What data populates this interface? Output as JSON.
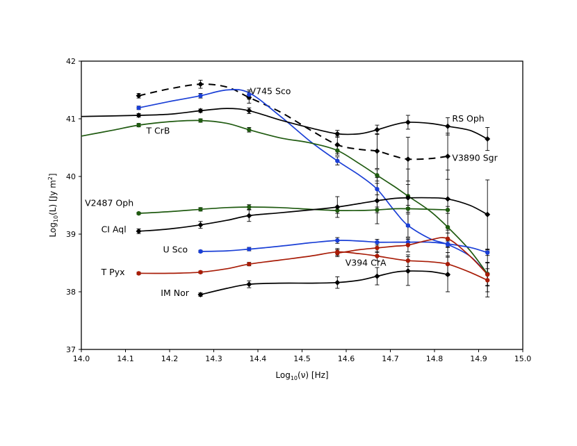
{
  "chart_data": {
    "type": "line",
    "xlabel_main": "Log",
    "xlabel_sub": "10",
    "xlabel_rest": "(ν) [Hz]",
    "ylabel_main": "Log",
    "ylabel_sub": "10",
    "ylabel_mid": "(L) [Jy m",
    "ylabel_sup": "2",
    "ylabel_end": "]",
    "xlim": [
      14.0,
      15.0
    ],
    "ylim": [
      37,
      42
    ],
    "xticks": [
      14.0,
      14.1,
      14.2,
      14.3,
      14.4,
      14.5,
      14.6,
      14.7,
      14.8,
      14.9,
      15.0
    ],
    "xtick_labels": [
      "14.0",
      "14.1",
      "14.2",
      "14.3",
      "14.4",
      "14.5",
      "14.6",
      "14.7",
      "14.8",
      "14.9",
      "15.0"
    ],
    "yticks": [
      37,
      38,
      39,
      40,
      41,
      42
    ],
    "ytick_labels": [
      "37",
      "38",
      "39",
      "40",
      "41",
      "42"
    ],
    "series": [
      {
        "name": "V3890 Sgr",
        "color": "#000000",
        "dashed": true,
        "marker": "diamond",
        "points": [
          [
            14.13,
            41.4
          ],
          [
            14.27,
            41.6
          ],
          [
            14.38,
            41.37
          ],
          [
            14.58,
            40.55
          ],
          [
            14.67,
            40.44
          ],
          [
            14.74,
            40.3
          ],
          [
            14.83,
            40.35
          ]
        ],
        "errors": [
          0.04,
          0.07,
          0.1,
          0.15,
          0.3,
          0.38,
          0.4
        ],
        "curve": [
          [
            14.13,
            41.4
          ],
          [
            14.2,
            41.52
          ],
          [
            14.27,
            41.6
          ],
          [
            14.33,
            41.55
          ],
          [
            14.38,
            41.37
          ],
          [
            14.45,
            41.12
          ],
          [
            14.52,
            40.8
          ],
          [
            14.58,
            40.55
          ],
          [
            14.63,
            40.47
          ],
          [
            14.67,
            40.44
          ],
          [
            14.71,
            40.35
          ],
          [
            14.74,
            40.3
          ],
          [
            14.79,
            40.31
          ],
          [
            14.83,
            40.35
          ]
        ]
      },
      {
        "name": "V745 Sco",
        "color": "#1a3fd6",
        "dashed": false,
        "marker": "circle",
        "points": [
          [
            14.13,
            41.19
          ],
          [
            14.27,
            41.4
          ],
          [
            14.38,
            41.42
          ],
          [
            14.58,
            40.27
          ],
          [
            14.67,
            39.78
          ],
          [
            14.74,
            39.15
          ],
          [
            14.83,
            38.82
          ],
          [
            14.92,
            38.31
          ]
        ],
        "errors": [
          0.03,
          0.04,
          0.08,
          0.07,
          0.1,
          0.2,
          0.2,
          0.2
        ],
        "curve": [
          [
            14.13,
            41.19
          ],
          [
            14.2,
            41.3
          ],
          [
            14.27,
            41.4
          ],
          [
            14.33,
            41.5
          ],
          [
            14.38,
            41.45
          ],
          [
            14.45,
            41.05
          ],
          [
            14.52,
            40.6
          ],
          [
            14.58,
            40.27
          ],
          [
            14.63,
            40.02
          ],
          [
            14.67,
            39.78
          ],
          [
            14.71,
            39.4
          ],
          [
            14.74,
            39.15
          ],
          [
            14.79,
            38.92
          ],
          [
            14.83,
            38.82
          ],
          [
            14.88,
            38.62
          ],
          [
            14.92,
            38.31
          ]
        ]
      },
      {
        "name": "RS Oph",
        "color": "#000000",
        "dashed": false,
        "marker": "diamond",
        "points": [
          [
            14.13,
            41.06
          ],
          [
            14.27,
            41.14
          ],
          [
            14.38,
            41.14
          ],
          [
            14.58,
            40.74
          ],
          [
            14.67,
            40.81
          ],
          [
            14.74,
            40.94
          ],
          [
            14.83,
            40.87
          ],
          [
            14.92,
            40.65
          ]
        ],
        "errors": [
          0.03,
          0.03,
          0.05,
          0.06,
          0.08,
          0.12,
          0.15,
          0.2
        ],
        "curve": [
          [
            14.0,
            41.04
          ],
          [
            14.13,
            41.06
          ],
          [
            14.2,
            41.08
          ],
          [
            14.27,
            41.14
          ],
          [
            14.33,
            41.18
          ],
          [
            14.38,
            41.14
          ],
          [
            14.45,
            40.98
          ],
          [
            14.52,
            40.84
          ],
          [
            14.58,
            40.74
          ],
          [
            14.63,
            40.74
          ],
          [
            14.67,
            40.81
          ],
          [
            14.71,
            40.9
          ],
          [
            14.74,
            40.94
          ],
          [
            14.79,
            40.92
          ],
          [
            14.83,
            40.87
          ],
          [
            14.88,
            40.8
          ],
          [
            14.92,
            40.65
          ]
        ]
      },
      {
        "name": "T CrB",
        "color": "#1f5a10",
        "dashed": false,
        "marker": "circle",
        "points": [
          [
            14.13,
            40.89
          ],
          [
            14.27,
            40.97
          ],
          [
            14.38,
            40.81
          ],
          [
            14.58,
            40.45
          ],
          [
            14.67,
            40.02
          ],
          [
            14.74,
            39.66
          ],
          [
            14.83,
            39.12
          ],
          [
            14.92,
            38.31
          ]
        ],
        "errors": [
          0.03,
          0.03,
          0.04,
          0.08,
          0.1,
          0.2,
          0.3,
          0.4
        ],
        "curve": [
          [
            14.0,
            40.7
          ],
          [
            14.07,
            40.8
          ],
          [
            14.13,
            40.89
          ],
          [
            14.2,
            40.95
          ],
          [
            14.27,
            40.97
          ],
          [
            14.33,
            40.92
          ],
          [
            14.38,
            40.81
          ],
          [
            14.45,
            40.67
          ],
          [
            14.52,
            40.58
          ],
          [
            14.58,
            40.45
          ],
          [
            14.63,
            40.22
          ],
          [
            14.67,
            40.02
          ],
          [
            14.71,
            39.82
          ],
          [
            14.74,
            39.66
          ],
          [
            14.79,
            39.4
          ],
          [
            14.83,
            39.12
          ],
          [
            14.88,
            38.72
          ],
          [
            14.92,
            38.31
          ]
        ]
      },
      {
        "name": "V2487 Oph",
        "color": "#1f5a10",
        "dashed": false,
        "marker": "circle",
        "points": [
          [
            14.13,
            39.36
          ],
          [
            14.27,
            39.43
          ],
          [
            14.38,
            39.47
          ],
          [
            14.58,
            39.41
          ],
          [
            14.67,
            39.42
          ],
          [
            14.74,
            39.44
          ],
          [
            14.83,
            39.42
          ]
        ],
        "errors": [
          0.02,
          0.03,
          0.04,
          0.05,
          0.05,
          0.06,
          0.06
        ],
        "curve": [
          [
            14.13,
            39.36
          ],
          [
            14.2,
            39.39
          ],
          [
            14.27,
            39.43
          ],
          [
            14.33,
            39.46
          ],
          [
            14.38,
            39.47
          ],
          [
            14.45,
            39.46
          ],
          [
            14.52,
            39.43
          ],
          [
            14.58,
            39.41
          ],
          [
            14.63,
            39.41
          ],
          [
            14.67,
            39.42
          ],
          [
            14.71,
            39.44
          ],
          [
            14.74,
            39.44
          ],
          [
            14.79,
            39.43
          ],
          [
            14.83,
            39.42
          ]
        ]
      },
      {
        "name": "CI Aql",
        "color": "#000000",
        "dashed": false,
        "marker": "diamond",
        "points": [
          [
            14.13,
            39.05
          ],
          [
            14.27,
            39.16
          ],
          [
            14.38,
            39.32
          ],
          [
            14.58,
            39.47
          ],
          [
            14.67,
            39.58
          ],
          [
            14.74,
            39.63
          ],
          [
            14.83,
            39.61
          ],
          [
            14.92,
            39.34
          ]
        ],
        "errors": [
          0.04,
          0.06,
          0.1,
          0.18,
          0.4,
          0.5,
          0.5,
          0.6
        ],
        "curve": [
          [
            14.13,
            39.05
          ],
          [
            14.2,
            39.09
          ],
          [
            14.27,
            39.16
          ],
          [
            14.33,
            39.24
          ],
          [
            14.38,
            39.32
          ],
          [
            14.45,
            39.37
          ],
          [
            14.52,
            39.42
          ],
          [
            14.58,
            39.47
          ],
          [
            14.63,
            39.53
          ],
          [
            14.67,
            39.58
          ],
          [
            14.71,
            39.62
          ],
          [
            14.74,
            39.63
          ],
          [
            14.79,
            39.63
          ],
          [
            14.83,
            39.61
          ],
          [
            14.88,
            39.5
          ],
          [
            14.92,
            39.34
          ]
        ]
      },
      {
        "name": "U Sco",
        "color": "#1a3fd6",
        "dashed": false,
        "marker": "circle",
        "points": [
          [
            14.27,
            38.7
          ],
          [
            14.38,
            38.74
          ],
          [
            14.58,
            38.89
          ],
          [
            14.67,
            38.86
          ],
          [
            14.74,
            38.86
          ],
          [
            14.83,
            38.83
          ],
          [
            14.92,
            38.68
          ]
        ],
        "errors": [
          0.02,
          0.03,
          0.05,
          0.05,
          0.05,
          0.05,
          0.05
        ],
        "curve": [
          [
            14.27,
            38.7
          ],
          [
            14.33,
            38.71
          ],
          [
            14.38,
            38.74
          ],
          [
            14.45,
            38.79
          ],
          [
            14.52,
            38.85
          ],
          [
            14.58,
            38.89
          ],
          [
            14.63,
            38.88
          ],
          [
            14.67,
            38.86
          ],
          [
            14.71,
            38.86
          ],
          [
            14.74,
            38.86
          ],
          [
            14.79,
            38.86
          ],
          [
            14.83,
            38.83
          ],
          [
            14.88,
            38.77
          ],
          [
            14.92,
            38.68
          ]
        ]
      },
      {
        "name": "V394 CrA",
        "color": "#a81c07",
        "dashed": false,
        "marker": "circle",
        "points": [
          [
            14.58,
            38.67
          ],
          [
            14.67,
            38.76
          ],
          [
            14.74,
            38.81
          ],
          [
            14.83,
            38.92
          ],
          [
            14.92,
            38.3
          ]
        ],
        "errors": [
          0.06,
          0.08,
          0.12,
          0.15,
          0.2
        ],
        "curve": [
          [
            14.58,
            38.67
          ],
          [
            14.63,
            38.73
          ],
          [
            14.67,
            38.76
          ],
          [
            14.71,
            38.79
          ],
          [
            14.74,
            38.81
          ],
          [
            14.79,
            38.9
          ],
          [
            14.83,
            38.92
          ],
          [
            14.88,
            38.62
          ],
          [
            14.92,
            38.3
          ]
        ]
      },
      {
        "name": "T Pyx",
        "color": "#a81c07",
        "dashed": false,
        "marker": "circle",
        "points": [
          [
            14.13,
            38.32
          ],
          [
            14.27,
            38.34
          ],
          [
            14.38,
            38.48
          ],
          [
            14.58,
            38.69
          ],
          [
            14.67,
            38.62
          ],
          [
            14.74,
            38.54
          ],
          [
            14.83,
            38.48
          ],
          [
            14.92,
            38.2
          ]
        ],
        "errors": [
          0.02,
          0.02,
          0.03,
          0.06,
          0.08,
          0.1,
          0.2,
          0.2
        ],
        "curve": [
          [
            14.13,
            38.32
          ],
          [
            14.2,
            38.32
          ],
          [
            14.27,
            38.34
          ],
          [
            14.33,
            38.4
          ],
          [
            14.38,
            38.48
          ],
          [
            14.45,
            38.55
          ],
          [
            14.52,
            38.62
          ],
          [
            14.58,
            38.69
          ],
          [
            14.63,
            38.66
          ],
          [
            14.67,
            38.62
          ],
          [
            14.71,
            38.57
          ],
          [
            14.74,
            38.54
          ],
          [
            14.79,
            38.52
          ],
          [
            14.83,
            38.48
          ],
          [
            14.88,
            38.34
          ],
          [
            14.92,
            38.2
          ]
        ]
      },
      {
        "name": "IM Nor",
        "color": "#000000",
        "dashed": false,
        "marker": "diamond",
        "points": [
          [
            14.27,
            37.95
          ],
          [
            14.38,
            38.13
          ],
          [
            14.58,
            38.16
          ],
          [
            14.67,
            38.27
          ],
          [
            14.74,
            38.36
          ],
          [
            14.83,
            38.3
          ]
        ],
        "errors": [
          0.03,
          0.06,
          0.1,
          0.15,
          0.25,
          0.3
        ],
        "curve": [
          [
            14.27,
            37.95
          ],
          [
            14.33,
            38.06
          ],
          [
            14.38,
            38.13
          ],
          [
            14.45,
            38.15
          ],
          [
            14.52,
            38.15
          ],
          [
            14.58,
            38.16
          ],
          [
            14.63,
            38.2
          ],
          [
            14.67,
            38.27
          ],
          [
            14.71,
            38.34
          ],
          [
            14.74,
            38.36
          ],
          [
            14.79,
            38.35
          ],
          [
            14.83,
            38.3
          ]
        ]
      }
    ],
    "labels": [
      {
        "text": "V745 Sco",
        "x": 14.382,
        "y": 41.43,
        "anchor": "start"
      },
      {
        "text": "RS Oph",
        "x": 14.84,
        "y": 40.95,
        "anchor": "start"
      },
      {
        "text": "T CrB",
        "x": 14.147,
        "y": 40.74,
        "anchor": "start"
      },
      {
        "text": "V3890 Sgr",
        "x": 14.84,
        "y": 40.27,
        "anchor": "start"
      },
      {
        "text": "V2487 Oph",
        "x": 14.008,
        "y": 39.49,
        "anchor": "start"
      },
      {
        "text": "CI Aql",
        "x": 14.045,
        "y": 39.03,
        "anchor": "start"
      },
      {
        "text": "U Sco",
        "x": 14.185,
        "y": 38.68,
        "anchor": "start"
      },
      {
        "text": "V394 CrA",
        "x": 14.598,
        "y": 38.45,
        "anchor": "start"
      },
      {
        "text": "T Pyx",
        "x": 14.045,
        "y": 38.29,
        "anchor": "start"
      },
      {
        "text": "IM Nor",
        "x": 14.18,
        "y": 37.93,
        "anchor": "start"
      }
    ]
  }
}
